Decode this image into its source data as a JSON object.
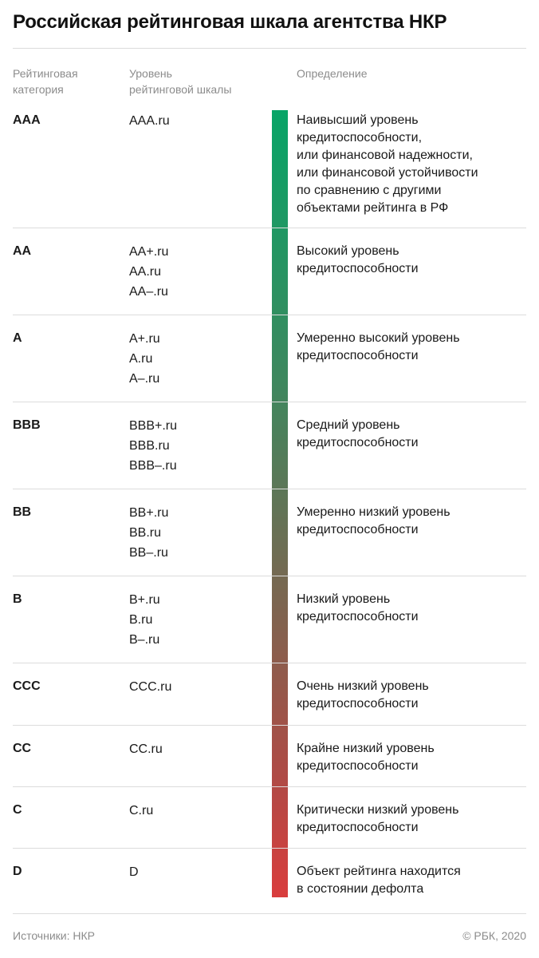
{
  "title": "Российская рейтинговая шкала агентства НКР",
  "headers": {
    "category": "Рейтинговая\nкатегория",
    "level": "Уровень\nрейтинговой шкалы",
    "definition": "Определение"
  },
  "rows": [
    {
      "category": "AAA",
      "levels": [
        "AAA.ru"
      ],
      "definition": "Наивысший уровень\nкредитоспособности,\nили  финансовой надежности,\nили финансовой устойчивости\nпо сравнению с другими\nобъектами рейтинга в РФ"
    },
    {
      "category": "AA",
      "levels": [
        "AA+.ru",
        "AA.ru",
        "AA–.ru"
      ],
      "definition": "Высокий уровень\nкредитоспособности"
    },
    {
      "category": "A",
      "levels": [
        "A+.ru",
        "A.ru",
        "A–.ru"
      ],
      "definition": "Умеренно высокий уровень\nкредитоспособности"
    },
    {
      "category": "BBB",
      "levels": [
        "BBB+.ru",
        "BBB.ru",
        "BBB–.ru"
      ],
      "definition": "Средний уровень\nкредитоспособности"
    },
    {
      "category": "BB",
      "levels": [
        "BB+.ru",
        "BB.ru",
        "BB–.ru"
      ],
      "definition": "Умеренно низкий уровень\nкредитоспособности"
    },
    {
      "category": "B",
      "levels": [
        "B+.ru",
        "B.ru",
        "B–.ru"
      ],
      "definition": "Низкий уровень\nкредитоспособности"
    },
    {
      "category": "CCC",
      "levels": [
        "CCC.ru"
      ],
      "definition": "Очень низкий уровень\nкредитоспособности"
    },
    {
      "category": "CC",
      "levels": [
        "CC.ru"
      ],
      "definition": "Крайне низкий уровень\nкредитоспособности"
    },
    {
      "category": "C",
      "levels": [
        "C.ru"
      ],
      "definition": "Критически низкий уровень\nкредитоспособности"
    },
    {
      "category": "D",
      "levels": [
        "D"
      ],
      "definition": "Объект рейтинга находится\nв состоянии дефолта"
    }
  ],
  "scale_colors": {
    "top": "#08a467",
    "bottom": "#d93d3d"
  },
  "footer": {
    "source": "Источники: НКР",
    "copyright": "© РБК, 2020"
  }
}
